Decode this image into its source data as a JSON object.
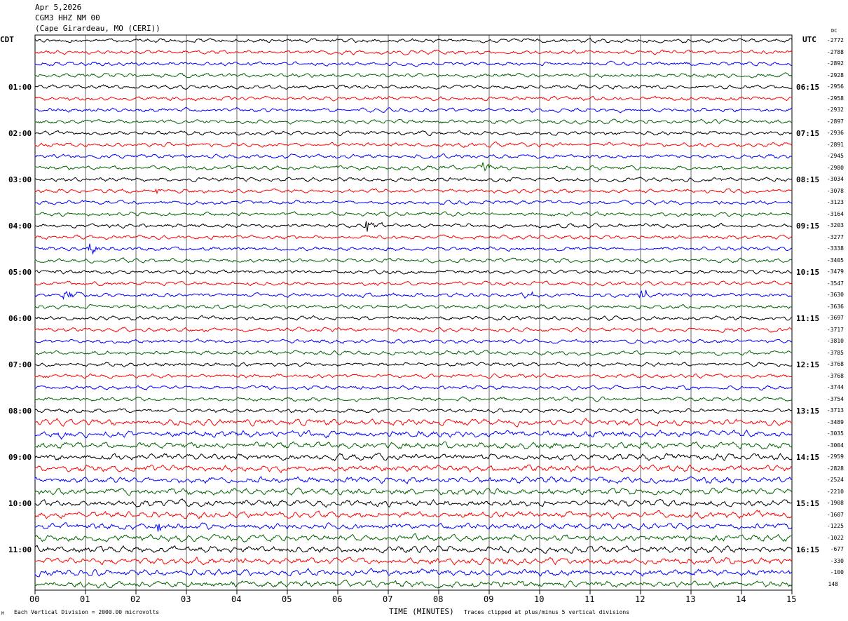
{
  "header": {
    "date": "Apr 5,2026",
    "station": "CGM3 HHZ NM 00",
    "location": "(Cape Girardeau, MO (CERI))"
  },
  "left_tz": "CDT",
  "right_tz": "UTC",
  "dc_label": "DC",
  "footer": {
    "scale": "Each Vertical Division = 2000.00 microvolts",
    "xlabel": "TIME (MINUTES)",
    "clip": "Traces clipped at plus/minus 5 vertical divisions",
    "corner": "M"
  },
  "chart_data": {
    "type": "line",
    "title": "CGM3 HHZ NM 00 helicorder",
    "xlabel": "TIME (MINUTES)",
    "xlim": [
      0,
      15
    ],
    "x_ticks": [
      "00",
      "01",
      "02",
      "03",
      "04",
      "05",
      "06",
      "07",
      "08",
      "09",
      "10",
      "11",
      "12",
      "13",
      "14",
      "15"
    ],
    "colors": [
      "#000000",
      "#ff0000",
      "#0000ff",
      "#006400"
    ],
    "left_hour_labels": [
      "",
      "01:00",
      "02:00",
      "03:00",
      "04:00",
      "05:00",
      "06:00",
      "07:00",
      "08:00",
      "09:00",
      "10:00",
      "11:00"
    ],
    "right_hour_labels": [
      "",
      "06:15",
      "07:15",
      "08:15",
      "09:15",
      "10:15",
      "11:15",
      "12:15",
      "13:15",
      "14:15",
      "15:15",
      "16:15"
    ],
    "dc_offsets": [
      "-2772",
      "-2788",
      "-2892",
      "-2928",
      "-2956",
      "-2958",
      "-2932",
      "-2897",
      "-2936",
      "-2891",
      "-2945",
      "-2980",
      "-3034",
      "-3078",
      "-3123",
      "-3164",
      "-3203",
      "-3277",
      "-3338",
      "-3405",
      "-3479",
      "-3547",
      "-3630",
      "-3636",
      "-3697",
      "-3717",
      "-3810",
      "-3785",
      "-3768",
      "-3768",
      "-3744",
      "-3754",
      "-3713",
      "-3489",
      "-3035",
      "-3004",
      "-2959",
      "-2828",
      "-2524",
      "-2210",
      "-1908",
      "-1607",
      "-1225",
      "-1022",
      "-677",
      "-330",
      "-100",
      "148"
    ],
    "events": [
      {
        "row": 11,
        "minute": 8.9,
        "amp": 8
      },
      {
        "row": 13,
        "minute": 2.4,
        "amp": 5
      },
      {
        "row": 16,
        "minute": 6.6,
        "amp": 8
      },
      {
        "row": 18,
        "minute": 1.1,
        "amp": 6
      },
      {
        "row": 22,
        "minute": 0.6,
        "amp": 6
      },
      {
        "row": 22,
        "minute": 9.7,
        "amp": 6
      },
      {
        "row": 22,
        "minute": 12.0,
        "amp": 9
      },
      {
        "row": 34,
        "minute": 0.5,
        "amp": 9
      },
      {
        "row": 42,
        "minute": 2.4,
        "amp": 8
      }
    ],
    "noise": {
      "rows_0_32": 2.5,
      "rows_33_47": 4
    }
  }
}
